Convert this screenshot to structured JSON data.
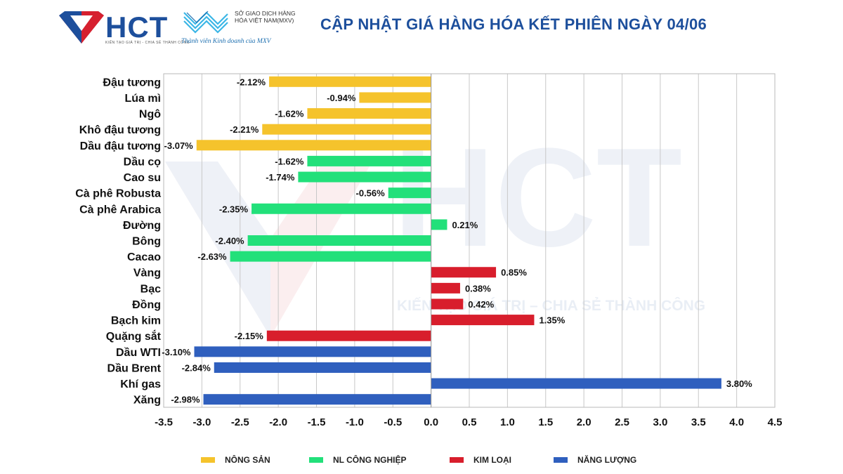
{
  "header": {
    "brand_name": "HCT",
    "brand_tagline": "KIẾN TẠO GIÁ TRỊ - CHIA SẺ THÀNH CÔNG",
    "exchange_name": "SỞ GIAO DỊCH HÀNG HÓA VIỆT NAM(MXV)",
    "exchange_member": "Thành viên Kinh doanh của MXV",
    "title": "CẬP NHẬT GIÁ HÀNG HÓA KẾT PHIÊN NGÀY 04/06"
  },
  "watermark": {
    "brand": "HCT",
    "tagline": "KIẾN TẠO GIÁ TRỊ – CHIA SẺ THÀNH CÔNG"
  },
  "colors": {
    "nong_san": "#f5c32c",
    "nl_cong_nghiep": "#22e07a",
    "kim_loai": "#d81e2c",
    "nang_luong": "#2f5fbe",
    "brand_blue": "#1d4f9c",
    "brand_red": "#d6202f"
  },
  "chart_data": {
    "type": "bar",
    "orientation": "horizontal",
    "title": "CẬP NHẬT GIÁ HÀNG HÓA KẾT PHIÊN NGÀY 04/06",
    "xlabel": "",
    "ylabel": "",
    "xlim": [
      -3.5,
      4.5
    ],
    "xticks": [
      "-3.5",
      "-3.0",
      "-2.5",
      "-2.0",
      "-1.5",
      "-1.0",
      "-0.5",
      "0.0",
      "0.5",
      "1.0",
      "1.5",
      "2.0",
      "2.5",
      "3.0",
      "3.5",
      "4.0",
      "4.5"
    ],
    "grid": "vertical",
    "legend_position": "bottom",
    "series": [
      {
        "name": "NÔNG SẢN",
        "color": "#f5c32c"
      },
      {
        "name": "NL CÔNG NGHIỆP",
        "color": "#22e07a"
      },
      {
        "name": "KIM LOẠI",
        "color": "#d81e2c"
      },
      {
        "name": "NĂNG LƯỢNG",
        "color": "#2f5fbe"
      }
    ],
    "bars": [
      {
        "category": "Đậu tương",
        "value": -2.12,
        "label": "-2.12%",
        "group": 0
      },
      {
        "category": "Lúa mì",
        "value": -0.94,
        "label": "-0.94%",
        "group": 0
      },
      {
        "category": "Ngô",
        "value": -1.62,
        "label": "-1.62%",
        "group": 0
      },
      {
        "category": "Khô đậu tương",
        "value": -2.21,
        "label": "-2.21%",
        "group": 0
      },
      {
        "category": "Dầu đậu tương",
        "value": -3.07,
        "label": "-3.07%",
        "group": 0
      },
      {
        "category": "Dầu cọ",
        "value": -1.62,
        "label": "-1.62%",
        "group": 1
      },
      {
        "category": "Cao su",
        "value": -1.74,
        "label": "-1.74%",
        "group": 1
      },
      {
        "category": "Cà phê Robusta",
        "value": -0.56,
        "label": "-0.56%",
        "group": 1
      },
      {
        "category": "Cà phê Arabica",
        "value": -2.35,
        "label": "-2.35%",
        "group": 1
      },
      {
        "category": "Đường",
        "value": 0.21,
        "label": "0.21%",
        "group": 1
      },
      {
        "category": "Bông",
        "value": -2.4,
        "label": "-2.40%",
        "group": 1
      },
      {
        "category": "Cacao",
        "value": -2.63,
        "label": "-2.63%",
        "group": 1
      },
      {
        "category": "Vàng",
        "value": 0.85,
        "label": "0.85%",
        "group": 2
      },
      {
        "category": "Bạc",
        "value": 0.38,
        "label": "0.38%",
        "group": 2
      },
      {
        "category": "Đồng",
        "value": 0.42,
        "label": "0.42%",
        "group": 2
      },
      {
        "category": "Bạch kim",
        "value": 1.35,
        "label": "1.35%",
        "group": 2
      },
      {
        "category": "Quặng sắt",
        "value": -2.15,
        "label": "-2.15%",
        "group": 2
      },
      {
        "category": "Dầu WTI",
        "value": -3.1,
        "label": "-3.10%",
        "group": 3
      },
      {
        "category": "Dầu Brent",
        "value": -2.84,
        "label": "-2.84%",
        "group": 3
      },
      {
        "category": "Khí gas",
        "value": 3.8,
        "label": "3.80%",
        "group": 3
      },
      {
        "category": "Xăng",
        "value": -2.98,
        "label": "-2.98%",
        "group": 3
      }
    ]
  }
}
